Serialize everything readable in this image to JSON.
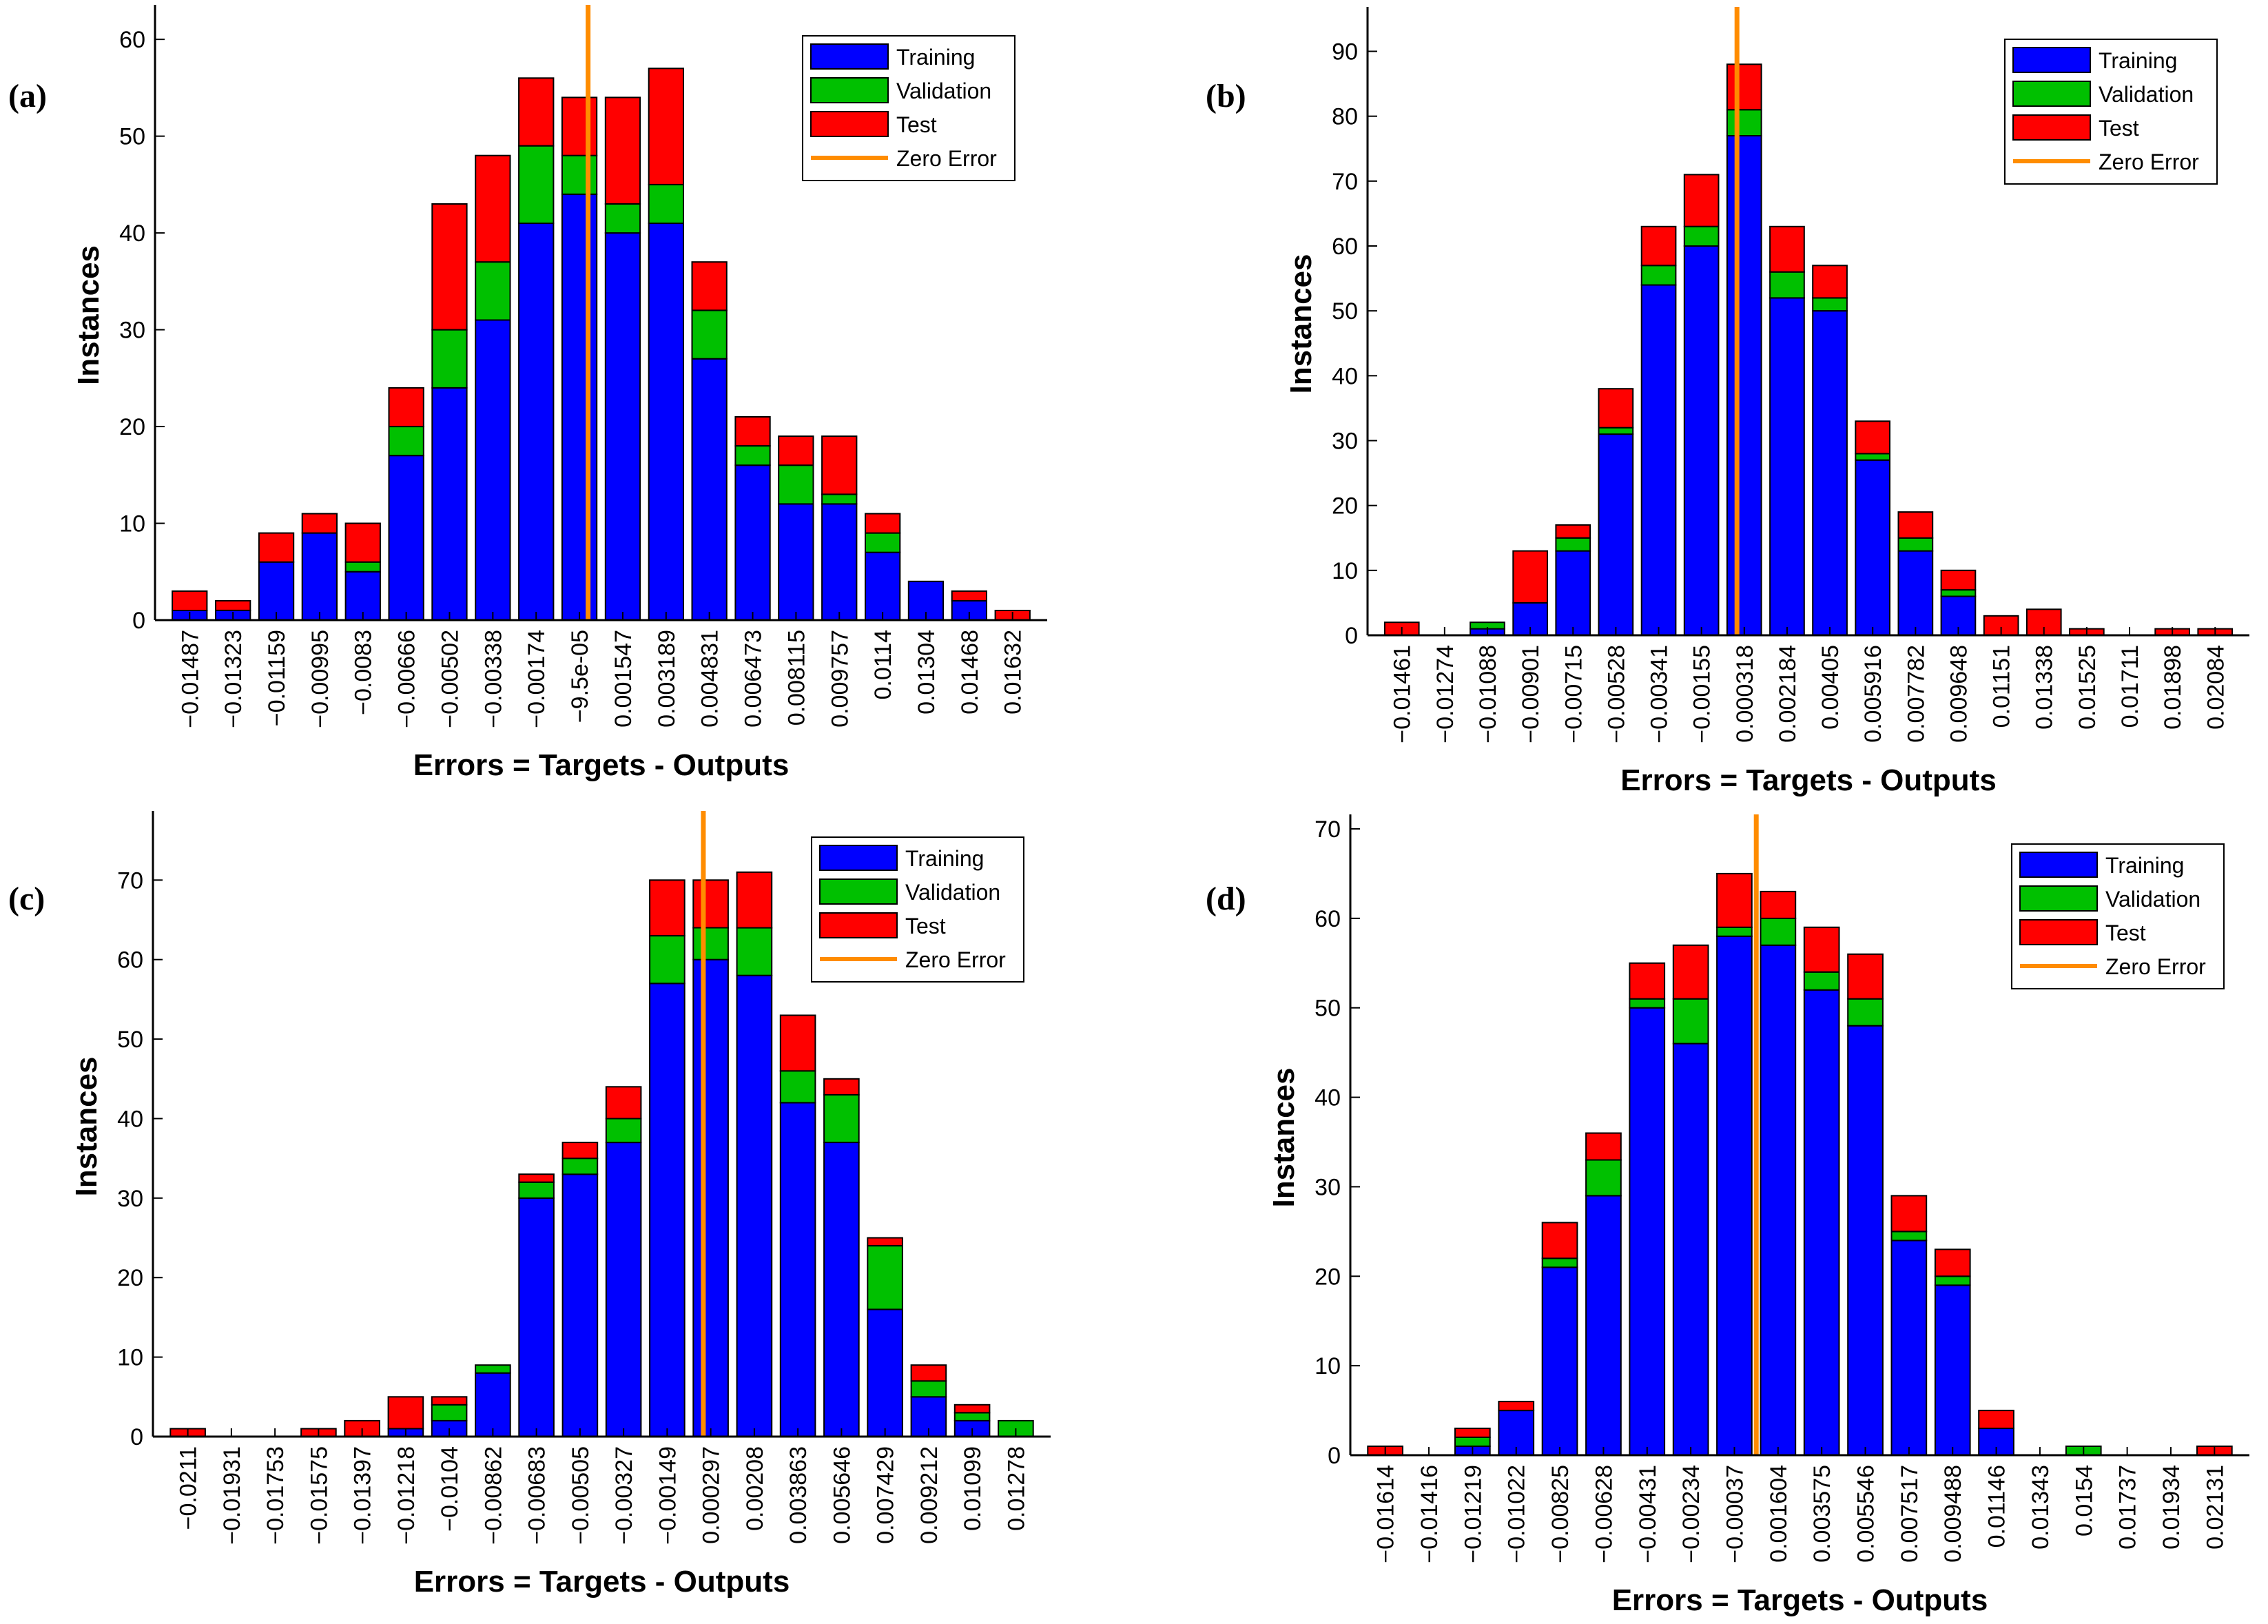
{
  "figure": {
    "panel_labels": [
      "(a)",
      "(b)",
      "(c)",
      "(d)"
    ]
  },
  "colors": {
    "training": "#0000FF",
    "validation": "#00C000",
    "test": "#FF0000",
    "zero_error": "#FF8C00",
    "axis": "#000000"
  },
  "chart_data": [
    {
      "type": "bar",
      "stacked": true,
      "panel": "(a)",
      "title": "",
      "xlabel": "Errors = Targets - Outputs",
      "ylabel": "Instances",
      "ylim": [
        0,
        63
      ],
      "yticks": [
        0,
        10,
        20,
        30,
        40,
        50,
        60
      ],
      "categories": [
        "−0.01487",
        "−0.01323",
        "−0.01159",
        "−0.00995",
        "−0.0083",
        "−0.00666",
        "−0.00502",
        "−0.00338",
        "−0.00174",
        "−9.5e-05",
        "0.001547",
        "0.003189",
        "0.004831",
        "0.006473",
        "0.008115",
        "0.009757",
        "0.0114",
        "0.01304",
        "0.01468",
        "0.01632"
      ],
      "series": [
        {
          "name": "Training",
          "values": [
            1,
            1,
            6,
            9,
            5,
            17,
            24,
            31,
            41,
            44,
            40,
            41,
            27,
            16,
            12,
            12,
            7,
            4,
            2,
            0
          ]
        },
        {
          "name": "Validation",
          "values": [
            0,
            0,
            0,
            0,
            1,
            3,
            6,
            6,
            8,
            4,
            3,
            4,
            5,
            2,
            4,
            1,
            2,
            0,
            0,
            0
          ]
        },
        {
          "name": "Test",
          "values": [
            2,
            1,
            3,
            2,
            4,
            4,
            13,
            11,
            7,
            6,
            11,
            12,
            5,
            3,
            3,
            6,
            2,
            0,
            1,
            1
          ]
        }
      ],
      "zero_error_index": 9.2,
      "legend": {
        "position": "top-right",
        "entries": [
          "Training",
          "Validation",
          "Test",
          "Zero Error"
        ]
      }
    },
    {
      "type": "bar",
      "stacked": true,
      "panel": "(b)",
      "title": "",
      "xlabel": "Errors = Targets - Outputs",
      "ylabel": "Instances",
      "ylim": [
        0,
        96
      ],
      "yticks": [
        0,
        10,
        20,
        30,
        40,
        50,
        60,
        70,
        80,
        90
      ],
      "categories": [
        "−0.01461",
        "−0.01274",
        "−0.01088",
        "−0.00901",
        "−0.00715",
        "−0.00528",
        "−0.00341",
        "−0.00155",
        "0.000318",
        "0.002184",
        "0.00405",
        "0.005916",
        "0.007782",
        "0.009648",
        "0.01151",
        "0.01338",
        "0.01525",
        "0.01711",
        "0.01898",
        "0.02084"
      ],
      "series": [
        {
          "name": "Training",
          "values": [
            0,
            0,
            1,
            5,
            13,
            31,
            54,
            60,
            77,
            52,
            50,
            27,
            13,
            6,
            0,
            0,
            0,
            0,
            0,
            0
          ]
        },
        {
          "name": "Validation",
          "values": [
            0,
            0,
            1,
            0,
            2,
            1,
            3,
            3,
            4,
            4,
            2,
            1,
            2,
            1,
            0,
            0,
            0,
            0,
            0,
            0
          ]
        },
        {
          "name": "Test",
          "values": [
            2,
            0,
            0,
            8,
            2,
            6,
            6,
            8,
            7,
            7,
            5,
            5,
            4,
            3,
            3,
            4,
            1,
            0,
            1,
            1
          ]
        }
      ],
      "zero_error_index": 7.83,
      "legend": {
        "position": "top-right",
        "entries": [
          "Training",
          "Validation",
          "Test",
          "Zero Error"
        ]
      }
    },
    {
      "type": "bar",
      "stacked": true,
      "panel": "(c)",
      "title": "",
      "xlabel": "Errors = Targets - Outputs",
      "ylabel": "Instances",
      "ylim": [
        0,
        78
      ],
      "yticks": [
        0,
        10,
        20,
        30,
        40,
        50,
        60,
        70
      ],
      "categories": [
        "−0.0211",
        "−0.01931",
        "−0.01753",
        "−0.01575",
        "−0.01397",
        "−0.01218",
        "−0.0104",
        "−0.00862",
        "−0.00683",
        "−0.00505",
        "−0.00327",
        "−0.00149",
        "0.000297",
        "0.00208",
        "0.003863",
        "0.005646",
        "0.007429",
        "0.009212",
        "0.01099",
        "0.01278"
      ],
      "series": [
        {
          "name": "Training",
          "values": [
            0,
            0,
            0,
            0,
            0,
            1,
            2,
            8,
            30,
            33,
            37,
            57,
            60,
            58,
            42,
            37,
            16,
            5,
            2,
            0
          ]
        },
        {
          "name": "Validation",
          "values": [
            0,
            0,
            0,
            0,
            0,
            0,
            2,
            1,
            2,
            2,
            3,
            6,
            4,
            6,
            4,
            6,
            8,
            2,
            1,
            2
          ]
        },
        {
          "name": "Test",
          "values": [
            1,
            0,
            0,
            1,
            2,
            4,
            1,
            0,
            1,
            2,
            4,
            7,
            6,
            7,
            7,
            2,
            1,
            2,
            1,
            0
          ]
        }
      ],
      "zero_error_index": 11.83,
      "legend": {
        "position": "top-right",
        "entries": [
          "Training",
          "Validation",
          "Test",
          "Zero Error"
        ]
      }
    },
    {
      "type": "bar",
      "stacked": true,
      "panel": "(d)",
      "title": "",
      "xlabel": "Errors = Targets - Outputs",
      "ylabel": "Instances",
      "ylim": [
        0,
        71
      ],
      "yticks": [
        0,
        10,
        20,
        30,
        40,
        50,
        60,
        70
      ],
      "categories": [
        "−0.01614",
        "−0.01416",
        "−0.01219",
        "−0.01022",
        "−0.00825",
        "−0.00628",
        "−0.00431",
        "−0.00234",
        "−0.00037",
        "0.001604",
        "0.003575",
        "0.005546",
        "0.007517",
        "0.009488",
        "0.01146",
        "0.01343",
        "0.0154",
        "0.01737",
        "0.01934",
        "0.02131"
      ],
      "series": [
        {
          "name": "Training",
          "values": [
            0,
            0,
            1,
            5,
            21,
            29,
            50,
            46,
            58,
            57,
            52,
            48,
            24,
            19,
            3,
            0,
            0,
            0,
            0,
            0
          ]
        },
        {
          "name": "Validation",
          "values": [
            0,
            0,
            1,
            0,
            1,
            4,
            1,
            5,
            1,
            3,
            2,
            3,
            1,
            1,
            0,
            0,
            1,
            0,
            0,
            0
          ]
        },
        {
          "name": "Test",
          "values": [
            1,
            0,
            1,
            1,
            4,
            3,
            4,
            6,
            6,
            3,
            5,
            5,
            4,
            3,
            2,
            0,
            0,
            0,
            0,
            1
          ]
        }
      ],
      "zero_error_index": 8.5,
      "legend": {
        "position": "top-right",
        "entries": [
          "Training",
          "Validation",
          "Test",
          "Zero Error"
        ]
      }
    }
  ]
}
